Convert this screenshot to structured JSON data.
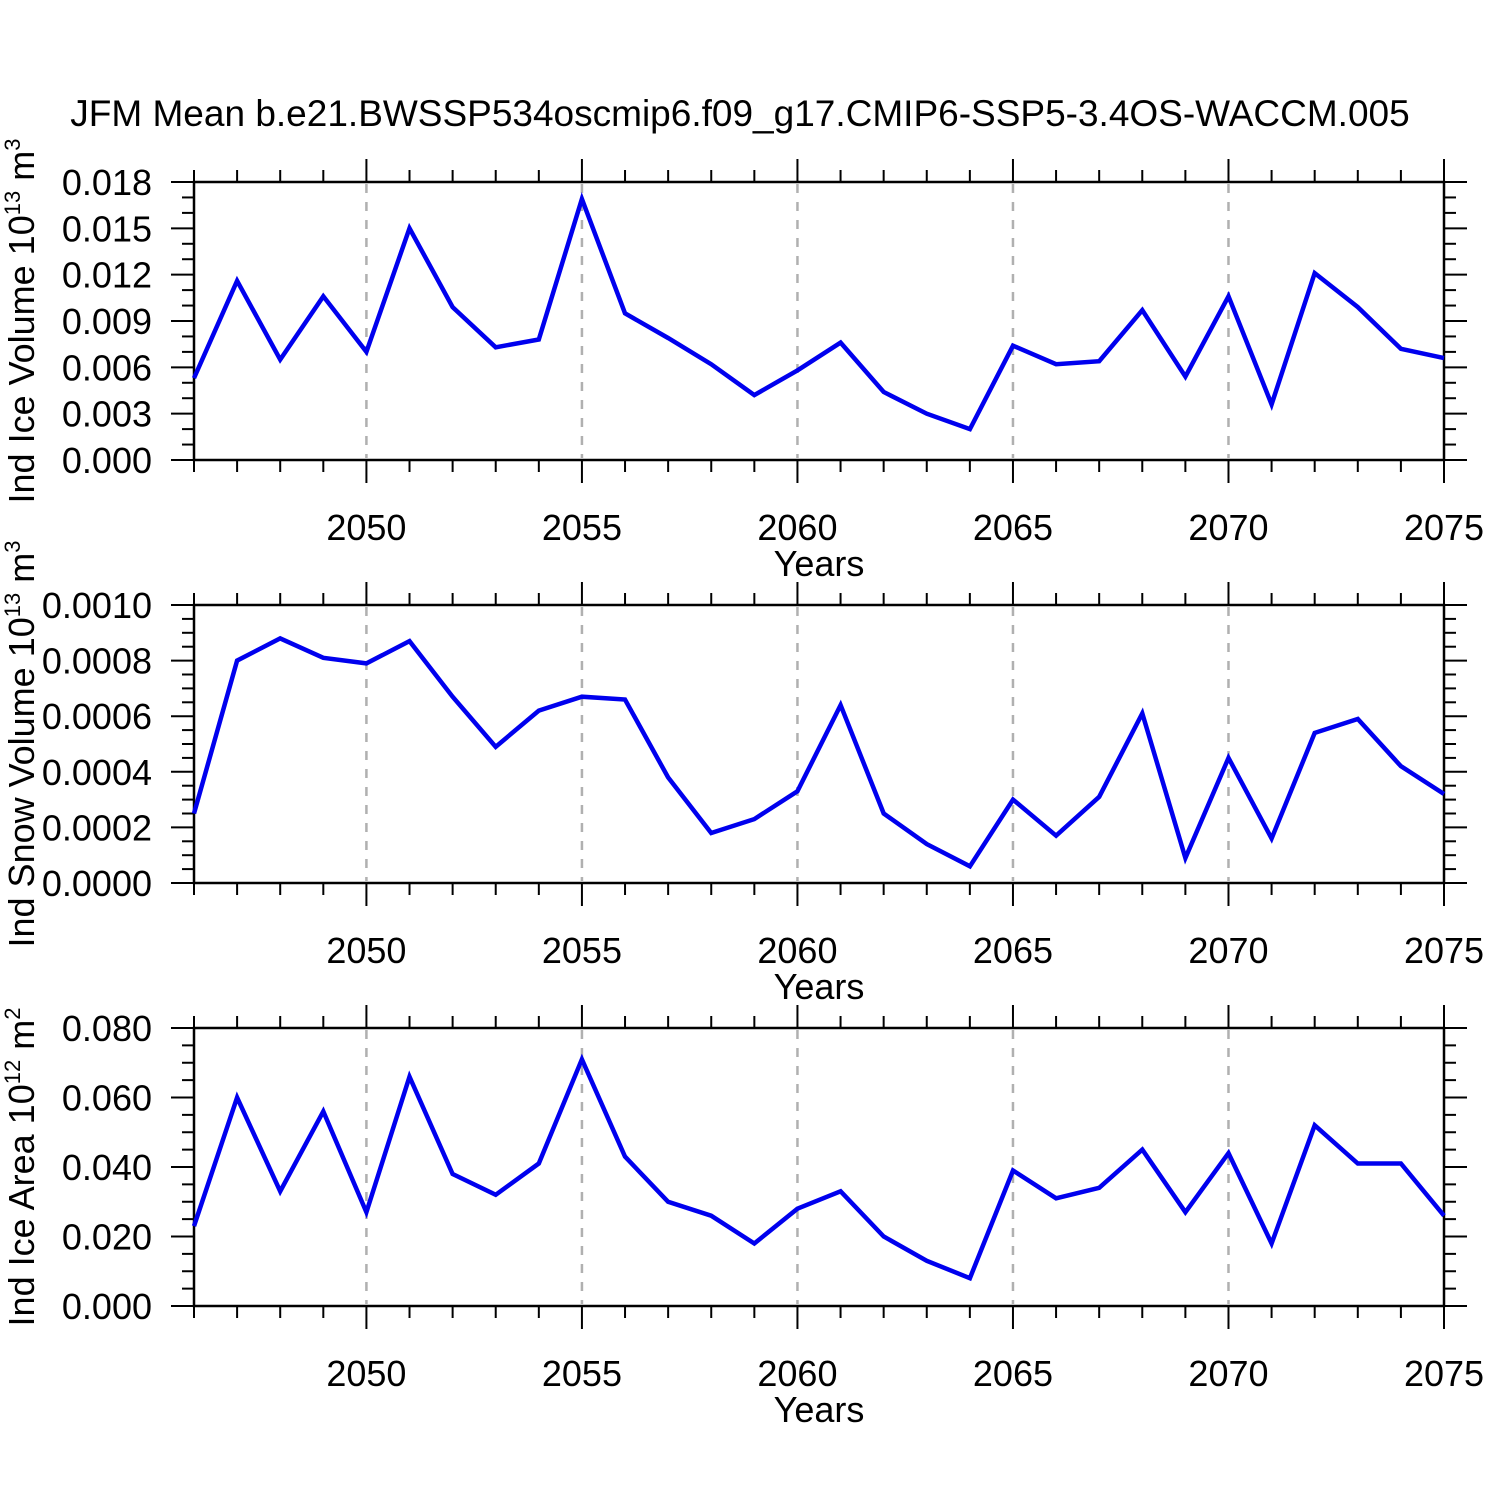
{
  "title": "JFM Mean b.e21.BWSSP534oscmip6.f09_g17.CMIP6-SSP5-3.4OS-WACCM.005",
  "colors": {
    "line": "#0000ee",
    "grid": "#b0b0b0",
    "axis": "#000000",
    "background": "#ffffff"
  },
  "chart_data": [
    {
      "type": "line",
      "name": "ind-ice-volume",
      "ylabel": "Ind Ice Volume 10^13^ m^3^",
      "xlabel": "Years",
      "x_start": 2046,
      "x_end": 2075,
      "x_step": 1,
      "xticks": [
        2050,
        2055,
        2060,
        2065,
        2070,
        2075
      ],
      "grid_x": [
        2050,
        2055,
        2060,
        2065,
        2070
      ],
      "ylim": [
        0,
        0.018
      ],
      "ytick_step": 0.003,
      "yminor_step": 0.001,
      "y_decimals": 3,
      "grid_on": "x-only",
      "legend": "none",
      "values": [
        0.0053,
        0.0116,
        0.0065,
        0.0106,
        0.007,
        0.015,
        0.0099,
        0.0073,
        0.0078,
        0.0169,
        0.0095,
        0.0079,
        0.0062,
        0.0042,
        0.0058,
        0.0076,
        0.0044,
        0.003,
        0.002,
        0.0074,
        0.0062,
        0.0064,
        0.0097,
        0.0054,
        0.0106,
        0.0036,
        0.0121,
        0.0099,
        0.0072,
        0.0066
      ]
    },
    {
      "type": "line",
      "name": "ind-snow-volume",
      "ylabel": "Ind Snow Volume 10^13^ m^3^",
      "xlabel": "Years",
      "x_start": 2046,
      "x_end": 2075,
      "x_step": 1,
      "xticks": [
        2050,
        2055,
        2060,
        2065,
        2070,
        2075
      ],
      "grid_x": [
        2050,
        2055,
        2060,
        2065,
        2070
      ],
      "ylim": [
        0,
        0.001
      ],
      "ytick_step": 0.0002,
      "yminor_step": 5e-05,
      "y_decimals": 4,
      "grid_on": "x-only",
      "legend": "none",
      "values": [
        0.00025,
        0.0008,
        0.00088,
        0.00081,
        0.00079,
        0.00087,
        0.00067,
        0.00049,
        0.00062,
        0.00067,
        0.00066,
        0.00038,
        0.00018,
        0.00023,
        0.00033,
        0.00064,
        0.00025,
        0.00014,
        6e-05,
        0.0003,
        0.00017,
        0.00031,
        0.00061,
        9e-05,
        0.00045,
        0.00016,
        0.00054,
        0.00059,
        0.00042,
        0.00032
      ]
    },
    {
      "type": "line",
      "name": "ind-ice-area",
      "ylabel": "Ind Ice Area 10^12^ m^2^",
      "xlabel": "Years",
      "x_start": 2046,
      "x_end": 2075,
      "x_step": 1,
      "xticks": [
        2050,
        2055,
        2060,
        2065,
        2070,
        2075
      ],
      "grid_x": [
        2050,
        2055,
        2060,
        2065,
        2070
      ],
      "ylim": [
        0,
        0.08
      ],
      "ytick_step": 0.02,
      "yminor_step": 0.005,
      "y_decimals": 3,
      "grid_on": "x-only",
      "legend": "none",
      "values": [
        0.023,
        0.06,
        0.033,
        0.056,
        0.027,
        0.066,
        0.038,
        0.032,
        0.041,
        0.071,
        0.043,
        0.03,
        0.026,
        0.018,
        0.028,
        0.033,
        0.02,
        0.013,
        0.008,
        0.039,
        0.031,
        0.034,
        0.045,
        0.027,
        0.044,
        0.018,
        0.052,
        0.041,
        0.041,
        0.026
      ]
    }
  ]
}
